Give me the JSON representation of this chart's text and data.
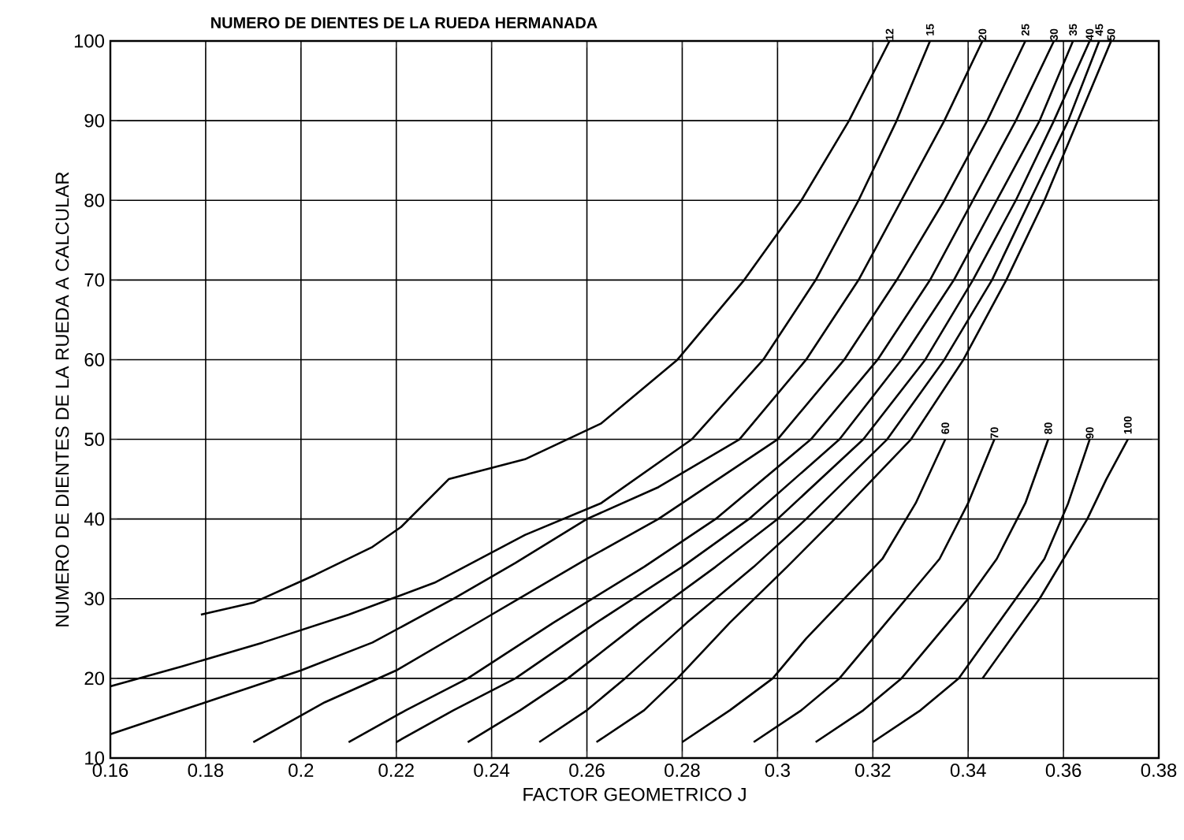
{
  "chart_data": {
    "type": "line",
    "xlabel": "FACTOR GEOMETRICO J",
    "ylabel": "NUMERO DE DIENTES DE LA RUEDA A CALCULAR",
    "annotations": [
      "NUMERO DE DIENTES DE LA RUEDA HERMANADA"
    ],
    "xlim": [
      0.16,
      0.38
    ],
    "ylim": [
      10,
      100
    ],
    "xticks": [
      0.16,
      0.18,
      0.2,
      0.22,
      0.24,
      0.26,
      0.28,
      0.3,
      0.32,
      0.34,
      0.36,
      0.38
    ],
    "yticks": [
      10,
      20,
      30,
      40,
      50,
      60,
      70,
      80,
      90,
      100
    ],
    "grid": true,
    "legend": false,
    "marker": "none",
    "line_style": "solid",
    "series": [
      {
        "name": "12",
        "color": "#000000",
        "x": [
          0.179,
          0.19,
          0.203,
          0.215,
          0.221,
          0.231,
          0.247,
          0.263,
          0.279,
          0.293,
          0.305,
          0.315,
          0.3235
        ],
        "values": [
          28,
          29.5,
          33,
          36.5,
          39,
          45,
          47.5,
          52,
          60,
          70,
          80,
          90,
          100
        ]
      },
      {
        "name": "15",
        "color": "#000000",
        "x": [
          0.16,
          0.175,
          0.192,
          0.21,
          0.228,
          0.247,
          0.263,
          0.282,
          0.297,
          0.308,
          0.317,
          0.325,
          0.332
        ],
        "values": [
          19,
          21.5,
          24.5,
          28,
          32,
          38,
          42,
          50,
          60,
          70,
          80,
          90,
          100
        ]
      },
      {
        "name": "20",
        "color": "#000000",
        "x": [
          0.16,
          0.18,
          0.2,
          0.215,
          0.232,
          0.245,
          0.26,
          0.275,
          0.292,
          0.306,
          0.317,
          0.326,
          0.335,
          0.343
        ],
        "values": [
          13,
          17,
          21,
          24.5,
          30,
          34.5,
          40,
          44,
          50,
          60,
          70,
          80,
          90,
          100
        ]
      },
      {
        "name": "25",
        "color": "#000000",
        "x": [
          0.19,
          0.205,
          0.22,
          0.24,
          0.26,
          0.275,
          0.3,
          0.314,
          0.325,
          0.335,
          0.344,
          0.352
        ],
        "values": [
          12,
          17,
          21,
          28,
          35,
          40,
          50,
          60,
          70,
          80,
          90,
          100
        ]
      },
      {
        "name": "30",
        "color": "#000000",
        "x": [
          0.21,
          0.222,
          0.235,
          0.253,
          0.272,
          0.287,
          0.307,
          0.321,
          0.332,
          0.341,
          0.35,
          0.358
        ],
        "values": [
          12,
          16,
          20,
          27,
          34,
          40,
          50,
          60,
          70,
          80,
          90,
          100
        ]
      },
      {
        "name": "35",
        "color": "#000000",
        "x": [
          0.22,
          0.232,
          0.245,
          0.262,
          0.28,
          0.294,
          0.313,
          0.326,
          0.337,
          0.346,
          0.355,
          0.362
        ],
        "values": [
          12,
          16,
          20,
          27,
          34,
          40,
          50,
          60,
          70,
          80,
          90,
          100
        ]
      },
      {
        "name": "40",
        "color": "#000000",
        "x": [
          0.235,
          0.246,
          0.256,
          0.271,
          0.287,
          0.3,
          0.318,
          0.331,
          0.341,
          0.35,
          0.358,
          0.3655
        ],
        "values": [
          12,
          16,
          20,
          27,
          34,
          40,
          50,
          60,
          70,
          80,
          90,
          100
        ]
      },
      {
        "name": "45",
        "color": "#000000",
        "x": [
          0.25,
          0.26,
          0.268,
          0.281,
          0.295,
          0.306,
          0.323,
          0.335,
          0.345,
          0.353,
          0.361,
          0.3675
        ],
        "values": [
          12,
          16,
          20,
          27,
          34,
          40,
          50,
          60,
          70,
          80,
          90,
          100
        ]
      },
      {
        "name": "50",
        "color": "#000000",
        "x": [
          0.262,
          0.272,
          0.279,
          0.29,
          0.302,
          0.312,
          0.328,
          0.339,
          0.348,
          0.356,
          0.363,
          0.37
        ],
        "values": [
          12,
          16,
          20,
          27,
          34,
          40,
          50,
          60,
          70,
          80,
          90,
          100
        ]
      },
      {
        "name": "60",
        "color": "#000000",
        "x": [
          0.28,
          0.29,
          0.299,
          0.306,
          0.314,
          0.322,
          0.329,
          0.3352
        ],
        "values": [
          12,
          16,
          20,
          25,
          30,
          35,
          42,
          50
        ]
      },
      {
        "name": "70",
        "color": "#000000",
        "x": [
          0.295,
          0.305,
          0.313,
          0.32,
          0.327,
          0.334,
          0.34,
          0.3455
        ],
        "values": [
          12,
          16,
          20,
          25,
          30,
          35,
          42,
          50
        ]
      },
      {
        "name": "80",
        "color": "#000000",
        "x": [
          0.308,
          0.318,
          0.326,
          0.333,
          0.34,
          0.346,
          0.352,
          0.3568
        ],
        "values": [
          12,
          16,
          20,
          25,
          30,
          35,
          42,
          50
        ]
      },
      {
        "name": "90",
        "color": "#000000",
        "x": [
          0.32,
          0.33,
          0.338,
          0.344,
          0.35,
          0.356,
          0.361,
          0.3655
        ],
        "values": [
          12,
          16,
          20,
          25,
          30,
          35,
          42,
          50
        ]
      },
      {
        "name": "100",
        "color": "#000000",
        "x": [
          0.343,
          0.349,
          0.355,
          0.36,
          0.365,
          0.369,
          0.3735
        ],
        "values": [
          20,
          25,
          30,
          35,
          40,
          45,
          50
        ]
      }
    ]
  }
}
